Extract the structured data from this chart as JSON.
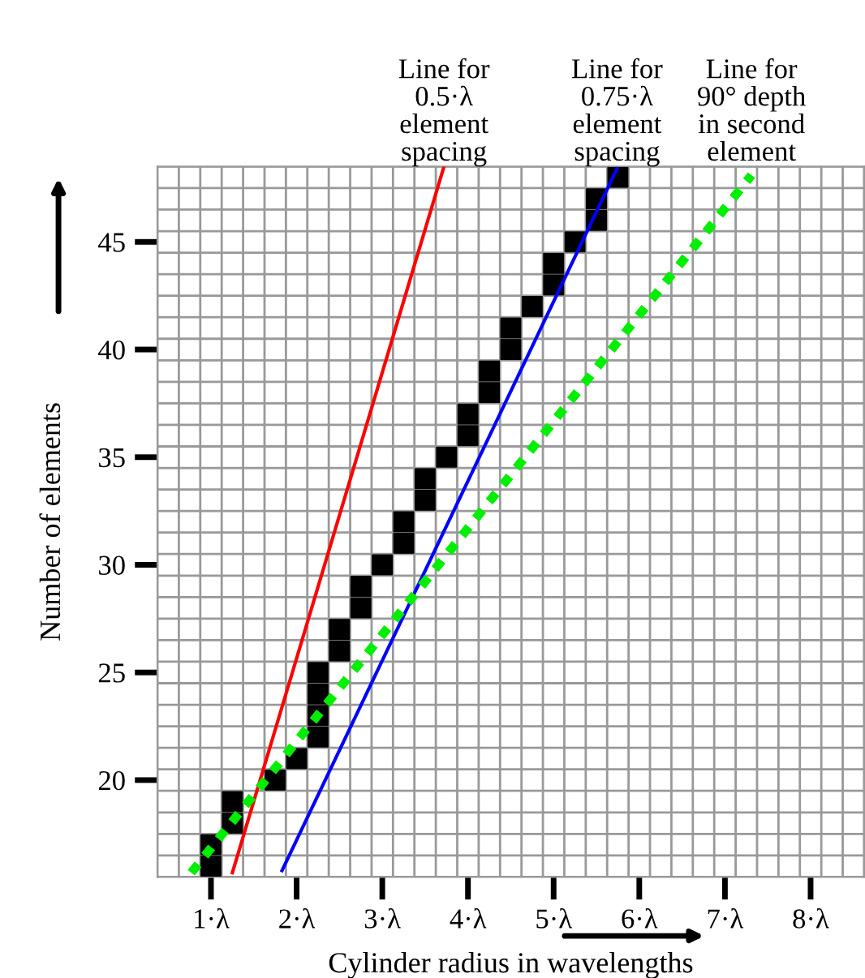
{
  "chart_data": {
    "type": "scatter",
    "xlabel": "Cylinder radius in wavelengths",
    "ylabel": "Number of elements",
    "xlim": [
      0.375,
      8.625
    ],
    "ylim": [
      15.5,
      48.5
    ],
    "xticks": [
      {
        "value": 0.375,
        "label": null
      },
      {
        "value": 0.625,
        "label": null
      },
      {
        "value": 0.875,
        "label": null
      },
      {
        "value": 1,
        "label": "1·λ"
      },
      {
        "value": 1.125,
        "label": null
      },
      {
        "value": 1.375,
        "label": null
      },
      {
        "value": 1.625,
        "label": null
      },
      {
        "value": 1.875,
        "label": null
      },
      {
        "value": 2,
        "label": "2·λ"
      },
      {
        "value": 2.125,
        "label": null
      },
      {
        "value": 2.375,
        "label": null
      },
      {
        "value": 2.625,
        "label": null
      },
      {
        "value": 2.875,
        "label": null
      },
      {
        "value": 3,
        "label": "3·λ"
      },
      {
        "value": 3.125,
        "label": null
      },
      {
        "value": 3.375,
        "label": null
      },
      {
        "value": 3.625,
        "label": null
      },
      {
        "value": 3.875,
        "label": null
      },
      {
        "value": 4,
        "label": "4·λ"
      },
      {
        "value": 4.125,
        "label": null
      },
      {
        "value": 4.375,
        "label": null
      },
      {
        "value": 4.625,
        "label": null
      },
      {
        "value": 4.875,
        "label": null
      },
      {
        "value": 5,
        "label": "5·λ"
      },
      {
        "value": 5.125,
        "label": null
      },
      {
        "value": 5.375,
        "label": null
      },
      {
        "value": 5.625,
        "label": null
      },
      {
        "value": 5.875,
        "label": null
      },
      {
        "value": 6,
        "label": "6·λ"
      },
      {
        "value": 6.125,
        "label": null
      },
      {
        "value": 6.375,
        "label": null
      },
      {
        "value": 6.625,
        "label": null
      },
      {
        "value": 6.875,
        "label": null
      },
      {
        "value": 7,
        "label": "7·λ"
      },
      {
        "value": 7.125,
        "label": null
      },
      {
        "value": 7.375,
        "label": null
      },
      {
        "value": 7.625,
        "label": null
      },
      {
        "value": 7.875,
        "label": null
      },
      {
        "value": 8,
        "label": "8·λ"
      },
      {
        "value": 8.125,
        "label": null
      },
      {
        "value": 8.375,
        "label": null
      },
      {
        "value": 8.625,
        "label": null
      }
    ],
    "yticks": [
      {
        "value": 15.5,
        "label": null
      },
      {
        "value": 16.5,
        "label": null
      },
      {
        "value": 17.5,
        "label": null
      },
      {
        "value": 18.5,
        "label": null
      },
      {
        "value": 19.5,
        "label": null
      },
      20,
      {
        "value": 20.5,
        "label": null
      },
      {
        "value": 21.5,
        "label": null
      },
      {
        "value": 22.5,
        "label": null
      },
      {
        "value": 23.5,
        "label": null
      },
      {
        "value": 24.5,
        "label": null
      },
      25,
      {
        "value": 25.5,
        "label": null
      },
      {
        "value": 26.5,
        "label": null
      },
      {
        "value": 27.5,
        "label": null
      },
      {
        "value": 28.5,
        "label": null
      },
      {
        "value": 29.5,
        "label": null
      },
      30,
      {
        "value": 30.5,
        "label": null
      },
      {
        "value": 31.5,
        "label": null
      },
      {
        "value": 32.5,
        "label": null
      },
      {
        "value": 33.5,
        "label": null
      },
      {
        "value": 34.5,
        "label": null
      },
      35,
      {
        "value": 35.5,
        "label": null
      },
      {
        "value": 36.5,
        "label": null
      },
      {
        "value": 37.5,
        "label": null
      },
      {
        "value": 38.5,
        "label": null
      },
      {
        "value": 39.5,
        "label": null
      },
      40,
      {
        "value": 40.5,
        "label": null
      },
      {
        "value": 41.5,
        "label": null
      },
      {
        "value": 42.5,
        "label": null
      },
      {
        "value": 43.5,
        "label": null
      },
      {
        "value": 44.5,
        "label": null
      },
      45,
      {
        "value": 45.5,
        "label": null
      },
      {
        "value": 46.5,
        "label": null
      },
      {
        "value": 47.5,
        "label": null
      },
      {
        "value": 48.5,
        "label": null
      }
    ],
    "grid": true,
    "series": [
      {
        "marker": "square",
        "color": "#000000",
        "x": [
          1.0,
          1.0,
          1.25,
          1.25,
          1.75,
          2.0,
          2.25,
          2.25,
          2.25,
          2.25,
          2.5,
          2.5,
          2.75,
          2.75,
          3.0,
          3.25,
          3.25,
          3.5,
          3.5,
          3.75,
          4.0,
          4.0,
          4.25,
          4.25,
          4.5,
          4.5,
          4.75,
          5.0,
          5.0,
          5.25,
          5.5,
          5.5,
          5.75
        ],
        "values": [
          16,
          17,
          18,
          19,
          20,
          21,
          22,
          23,
          24,
          25,
          26,
          27,
          28,
          29,
          30,
          31,
          32,
          33,
          34,
          35,
          36,
          37,
          38,
          39,
          40,
          41,
          42,
          43,
          44,
          45,
          46,
          47,
          48
        ]
      },
      {
        "type": "line",
        "name": "Line for\n0.5·λ\nelement\nspacing",
        "color": "#ff0000",
        "line_style": "solid",
        "marker": "none",
        "x": [
          1.25,
          3.72
        ],
        "values": [
          15.7,
          48.5
        ]
      },
      {
        "type": "line",
        "name": "Line for\n0.75·λ\nelement\nspacing",
        "color": "#0000ff",
        "line_style": "solid",
        "marker": "none",
        "x": [
          1.83,
          5.74
        ],
        "values": [
          15.8,
          48.4
        ]
      },
      {
        "type": "line",
        "name": "Line for\n90° depth\nin second\nelement",
        "color": "#00ee00",
        "line_style": "dotted",
        "marker": "none",
        "x": [
          0.77,
          7.31
        ],
        "values": [
          15.7,
          48.1
        ]
      }
    ]
  }
}
